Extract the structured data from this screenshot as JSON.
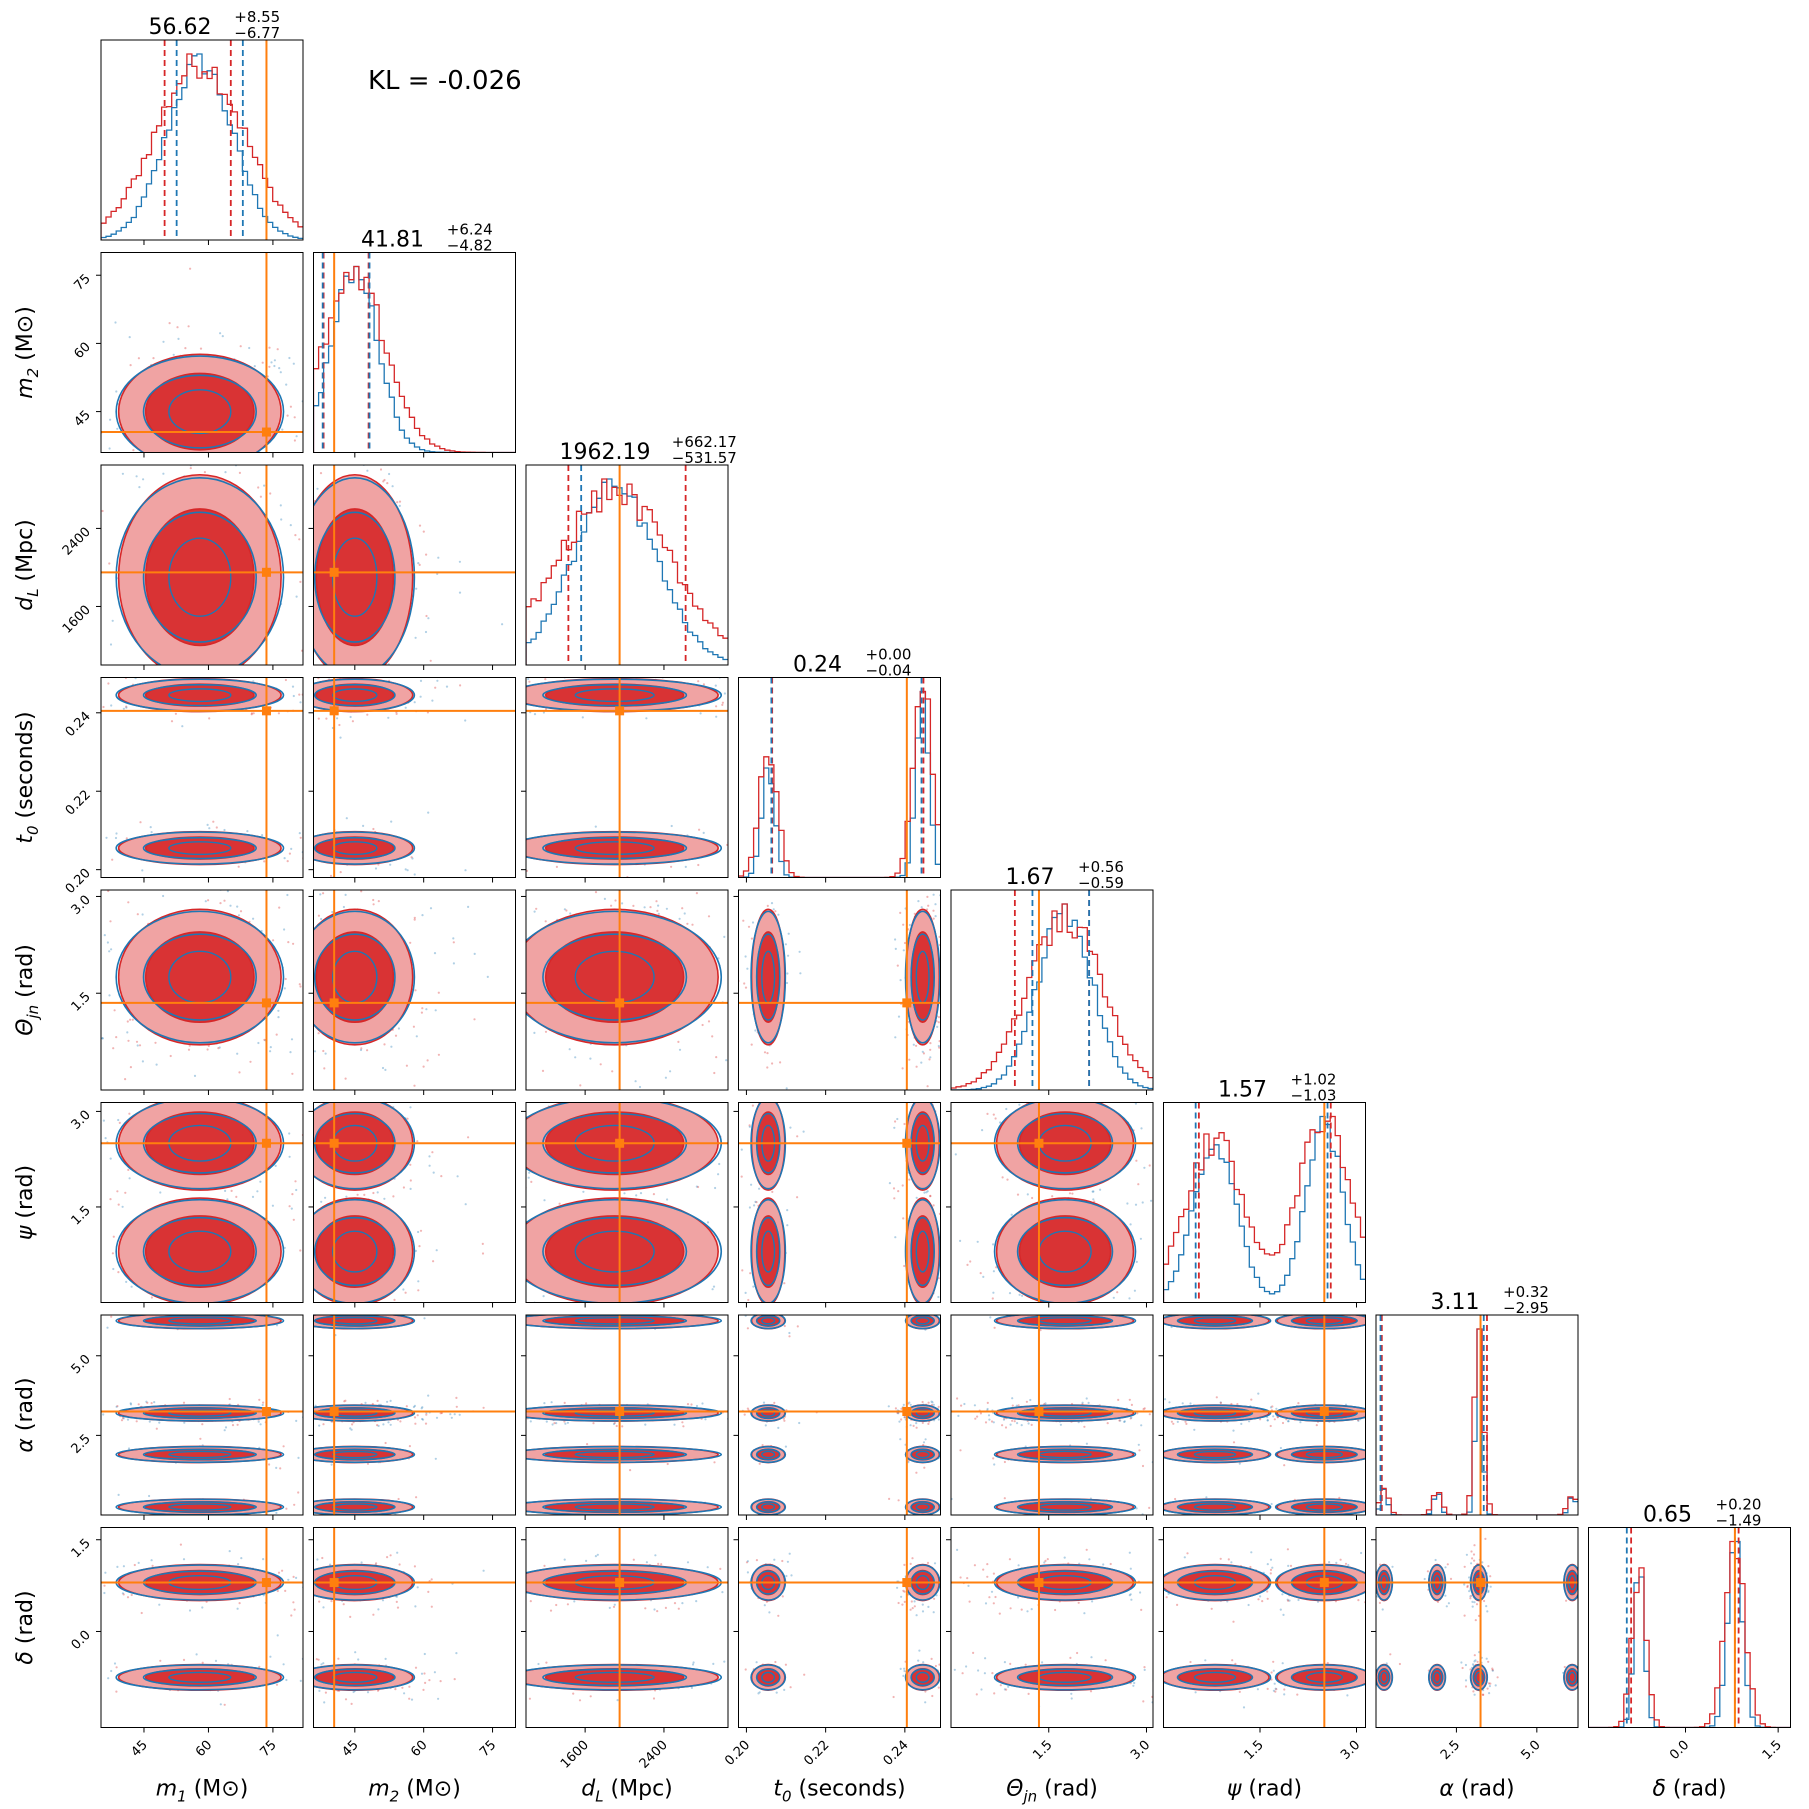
{
  "annotation": {
    "kl_text": "KL = -0.026"
  },
  "colors": {
    "blue": "#1f77b4",
    "red": "#d62728",
    "truth": "#ff7f0e",
    "red_fill_light": "#f0a3a3"
  },
  "chart_data": {
    "type": "corner",
    "series": [
      {
        "name": "",
        "color": "#1f77b4",
        "style": "step-histogram + contour"
      },
      {
        "name": "",
        "color": "#d62728",
        "style": "step-histogram + filled contour"
      }
    ],
    "parameters": [
      {
        "id": "m1",
        "label_main": "m",
        "label_sub": "1",
        "label_unit": "(M⊙)",
        "range": [
          35,
          82
        ],
        "ticks": [
          45,
          60,
          75
        ],
        "tick_labels": [
          "45",
          "60",
          "75"
        ],
        "truth": 73.5,
        "median": "56.62",
        "plus": "+8.55",
        "minus": "−6.77",
        "red_lines": [
          49.8,
          65.2
        ],
        "blue_lines": [
          52.6,
          68.0
        ]
      },
      {
        "id": "m2",
        "label_main": "m",
        "label_sub": "2",
        "label_unit": "(M⊙)",
        "range": [
          36,
          80
        ],
        "ticks": [
          45,
          60,
          75
        ],
        "tick_labels": [
          "45",
          "60",
          "75"
        ],
        "truth": 40.5,
        "median": "41.81",
        "plus": "+6.24",
        "minus": "−4.82",
        "red_lines": [
          38.2,
          48.0
        ],
        "blue_lines": [
          38.0,
          48.2
        ]
      },
      {
        "id": "dL",
        "label_main": "d",
        "label_sub": "L",
        "label_unit": "(Mpc)",
        "range": [
          1000,
          3050
        ],
        "ticks": [
          1600,
          2400
        ],
        "tick_labels": [
          "1600",
          "2400"
        ],
        "truth": 1950,
        "median": "1962.19",
        "plus": "+662.17",
        "minus": "−531.57",
        "red_lines": [
          1430,
          2620
        ],
        "blue_lines": [
          1560,
          null
        ]
      },
      {
        "id": "t0",
        "label_main": "t",
        "label_sub": "0",
        "label_unit": "(seconds)",
        "range": [
          0.198,
          0.249
        ],
        "ticks": [
          0.2,
          0.22,
          0.24
        ],
        "tick_labels": [
          "0.20",
          "0.22",
          "0.24"
        ],
        "truth": 0.2405,
        "median": "0.24",
        "plus": "+0.00",
        "minus": "−0.04",
        "red_lines": [
          0.2065,
          0.2447
        ],
        "blue_lines": [
          0.2063,
          0.2442
        ]
      },
      {
        "id": "thetajn",
        "label_main": "Θ",
        "label_sub": "jn",
        "label_unit": "(rad)",
        "range": [
          0.0,
          3.1
        ],
        "ticks": [
          1.5,
          3.0
        ],
        "tick_labels": [
          "1.5",
          "3.0"
        ],
        "truth": 1.35,
        "median": "1.67",
        "plus": "+0.56",
        "minus": "−0.59",
        "red_lines": [
          0.98,
          2.12
        ],
        "blue_lines": [
          1.25,
          2.12
        ]
      },
      {
        "id": "psi",
        "label_main": "ψ",
        "label_sub": "",
        "label_unit": "(rad)",
        "range": [
          0.0,
          3.14
        ],
        "ticks": [
          1.5,
          3.0
        ],
        "tick_labels": [
          "1.5",
          "3.0"
        ],
        "truth": 2.5,
        "median": "1.57",
        "plus": "+1.02",
        "minus": "−1.03",
        "red_lines": [
          0.55,
          2.6
        ],
        "blue_lines": [
          0.5,
          2.55
        ]
      },
      {
        "id": "alpha",
        "label_main": "α",
        "label_sub": "",
        "label_unit": "(rad)",
        "range": [
          0.0,
          6.28
        ],
        "ticks": [
          2.5,
          5.0
        ],
        "tick_labels": [
          "2.5",
          "5.0"
        ],
        "truth": 3.25,
        "median": "3.11",
        "plus": "+0.32",
        "minus": "−2.95",
        "red_lines": [
          0.18,
          3.45
        ],
        "blue_lines": [
          0.14,
          3.35
        ]
      },
      {
        "id": "delta",
        "label_main": "δ",
        "label_sub": "",
        "label_unit": "(rad)",
        "range": [
          -1.57,
          1.7
        ],
        "ticks": [
          0.0,
          1.5
        ],
        "tick_labels": [
          "0.0",
          "1.5"
        ],
        "truth": 0.8,
        "median": "0.65",
        "plus": "+0.20",
        "minus": "−1.49",
        "red_lines": [
          -0.88,
          0.86
        ],
        "blue_lines": [
          -0.95,
          0.8
        ]
      }
    ],
    "modes": {
      "m1": [
        [
          58,
          9,
          1
        ]
      ],
      "m2": [
        [
          45,
          6,
          1
        ]
      ],
      "dL": [
        [
          1900,
          500,
          1
        ]
      ],
      "t0": [
        [
          0.2445,
          0.002,
          0.62
        ],
        [
          0.2055,
          0.002,
          0.38
        ]
      ],
      "thetajn": [
        [
          1.75,
          0.5,
          1
        ]
      ],
      "psi": [
        [
          0.8,
          0.4,
          0.5
        ],
        [
          2.5,
          0.35,
          0.5
        ]
      ],
      "alpha": [
        [
          3.2,
          0.12,
          0.72
        ],
        [
          1.9,
          0.12,
          0.1
        ],
        [
          0.25,
          0.12,
          0.1
        ],
        [
          6.1,
          0.12,
          0.08
        ]
      ],
      "delta": [
        [
          0.8,
          0.14,
          0.62
        ],
        [
          -0.75,
          0.1,
          0.38
        ]
      ]
    },
    "legend": "none",
    "grid": false
  }
}
